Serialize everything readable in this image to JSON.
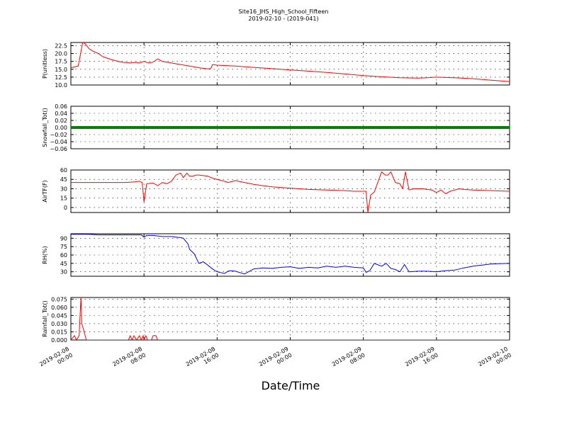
{
  "figure": {
    "title_line1": "Site16_JHS_High_School_Fifteen",
    "title_line2": "2019-02-10 - (2019-041)",
    "xlabel": "Date/Time",
    "x_ticks": [
      {
        "line1": "2019-02-08",
        "line2": "00:00"
      },
      {
        "line1": "2019-02-08",
        "line2": "08:00"
      },
      {
        "line1": "2019-02-08",
        "line2": "16:00"
      },
      {
        "line1": "2019-02-09",
        "line2": "00:00"
      },
      {
        "line1": "2019-02-09",
        "line2": "08:00"
      },
      {
        "line1": "2019-02-09",
        "line2": "16:00"
      },
      {
        "line1": "2019-02-10",
        "line2": "00:00"
      }
    ],
    "x_range_hours": [
      0,
      48
    ]
  },
  "chart_data": [
    {
      "type": "line",
      "ylabel": "P(unitless)",
      "ylim": [
        10.0,
        23.5
      ],
      "yticks": [
        "10.0",
        "12.5",
        "15.0",
        "17.5",
        "20.0",
        "22.5"
      ],
      "ytick_values": [
        10.0,
        12.5,
        15.0,
        17.5,
        20.0,
        22.5
      ],
      "grid": true,
      "color": "#ff0000",
      "x_hours": [
        0,
        0.8,
        1.0,
        1.3,
        1.6,
        2.0,
        2.4,
        3.0,
        3.5,
        4.5,
        5.5,
        6.5,
        7.0,
        7.5,
        8.0,
        8.5,
        9.0,
        9.5,
        10.0,
        11,
        12,
        13,
        14,
        15,
        15.3,
        15.5,
        16,
        18,
        20,
        22,
        24,
        26,
        28,
        30,
        32,
        34,
        36,
        38,
        39,
        40,
        42,
        44,
        46,
        48
      ],
      "values": [
        15.5,
        16.0,
        19.0,
        23.7,
        23.0,
        21.5,
        20.8,
        20.0,
        19.0,
        18.0,
        17.3,
        17.0,
        17.2,
        17.0,
        17.5,
        17.0,
        17.3,
        18.3,
        17.5,
        17.0,
        16.5,
        16.0,
        15.5,
        15.1,
        15.2,
        16.5,
        16.3,
        16.0,
        15.6,
        15.2,
        14.8,
        14.4,
        14.0,
        13.5,
        13.0,
        12.6,
        12.3,
        12.2,
        12.3,
        12.5,
        12.3,
        12.0,
        11.5,
        11.1
      ]
    },
    {
      "type": "line",
      "ylabel": "Snowfall_Tot()",
      "ylim": [
        -0.06,
        0.06
      ],
      "yticks": [
        "0.06",
        "0.04",
        "0.02",
        "0.00",
        "−0.02",
        "−0.04",
        "−0.06"
      ],
      "ytick_values": [
        0.06,
        0.04,
        0.02,
        0.0,
        -0.02,
        -0.04,
        -0.06
      ],
      "grid": true,
      "color": "#008000",
      "x_hours": [
        0,
        48
      ],
      "values": [
        0,
        0
      ]
    },
    {
      "type": "line",
      "ylabel": "AirTF(F)",
      "ylim": [
        -8,
        60
      ],
      "yticks": [
        "60",
        "45",
        "30",
        "15",
        "0"
      ],
      "ytick_values": [
        60,
        45,
        30,
        15,
        0
      ],
      "grid": true,
      "color": "#ff0000",
      "x_hours": [
        0,
        2,
        4,
        5,
        6,
        7,
        7.5,
        7.8,
        8.0,
        8.3,
        9,
        9.5,
        10,
        10.5,
        11,
        11.5,
        12,
        12.3,
        12.7,
        13,
        13.3,
        13.7,
        14,
        14.5,
        15,
        15.5,
        16,
        16.5,
        16.8,
        17.2,
        18,
        19,
        20,
        22,
        24,
        26,
        28,
        30,
        31,
        32,
        32.3,
        32.5,
        32.8,
        33.2,
        34,
        34.4,
        34.7,
        35,
        35.5,
        36,
        36.3,
        36.6,
        37,
        37.5,
        38,
        38.5,
        39,
        39.5,
        40,
        40.5,
        41,
        41.5,
        42,
        42.5,
        43,
        44,
        46,
        48
      ],
      "values": [
        40,
        40,
        40,
        40,
        40,
        41,
        42,
        40,
        9,
        38,
        39,
        35,
        40,
        38,
        42,
        52,
        55,
        48,
        55,
        50,
        50,
        52,
        52,
        51,
        50,
        47,
        45,
        43,
        42,
        40,
        43,
        40,
        37,
        33,
        31,
        29,
        28,
        27,
        26,
        26,
        26,
        -8,
        20,
        25,
        57,
        52,
        52,
        57,
        40,
        38,
        30,
        57,
        28,
        30,
        30,
        30,
        29,
        28,
        24,
        28,
        22,
        26,
        28,
        30,
        29,
        28,
        27,
        26
      ]
    },
    {
      "type": "line",
      "ylabel": "RH(%)",
      "ylim": [
        22,
        98
      ],
      "yticks": [
        "90",
        "75",
        "60",
        "45",
        "30"
      ],
      "ytick_values": [
        90,
        75,
        60,
        45,
        30
      ],
      "grid": true,
      "color": "#0000ff",
      "x_hours": [
        0,
        2,
        3,
        5,
        7,
        7.7,
        8.0,
        8.3,
        9,
        10,
        11,
        11.5,
        12,
        12.3,
        12.8,
        13.0,
        13.5,
        14,
        14.5,
        15.5,
        16,
        16.8,
        17.2,
        17.5,
        18,
        19,
        20,
        21,
        22,
        23,
        24,
        25,
        26,
        27,
        28,
        29,
        30,
        31,
        32,
        32.3,
        32.7,
        33.2,
        33.5,
        34,
        34.5,
        35,
        35.5,
        36,
        36.5,
        37,
        38,
        39,
        40,
        40.5,
        41,
        42,
        43,
        44,
        45,
        46,
        48
      ],
      "values": [
        97,
        97,
        96,
        96,
        96,
        96,
        92,
        95,
        95,
        93,
        93,
        92,
        91,
        90,
        80,
        70,
        62,
        45,
        48,
        35,
        30,
        27,
        31,
        32,
        31,
        26,
        35,
        37,
        36,
        38,
        39,
        36,
        38,
        37,
        40,
        38,
        40,
        38,
        37,
        29,
        32,
        45,
        43,
        40,
        45,
        36,
        34,
        30,
        43,
        30,
        31,
        31,
        30,
        31,
        32,
        33,
        37,
        40,
        42,
        44,
        45
      ]
    },
    {
      "type": "line",
      "ylabel": "Rainfall_Tot()",
      "ylim": [
        0.0,
        0.078
      ],
      "yticks": [
        "0.075",
        "0.060",
        "0.045",
        "0.030",
        "0.015",
        "0.000"
      ],
      "ytick_values": [
        0.075,
        0.06,
        0.045,
        0.03,
        0.015,
        0.0
      ],
      "grid": true,
      "color": "#ff0000",
      "x_hours": [
        0,
        0.4,
        0.6,
        0.9,
        1.1,
        1.2,
        1.5,
        1.7,
        1.9,
        2.0,
        6.3,
        6.5,
        6.7,
        6.9,
        7.2,
        7.5,
        7.7,
        7.9,
        8.0,
        8.2,
        8.4,
        8.6,
        8.8,
        9.0,
        9.3,
        9.5,
        9.8,
        10.0,
        48
      ],
      "values": [
        0,
        0.008,
        0,
        0.008,
        0.078,
        0.03,
        0.012,
        0,
        0,
        0,
        0,
        0.008,
        0,
        0.008,
        0,
        0.008,
        0,
        0.008,
        0,
        0.008,
        0,
        0,
        0,
        0.008,
        0.008,
        0,
        0,
        0,
        0
      ]
    }
  ]
}
